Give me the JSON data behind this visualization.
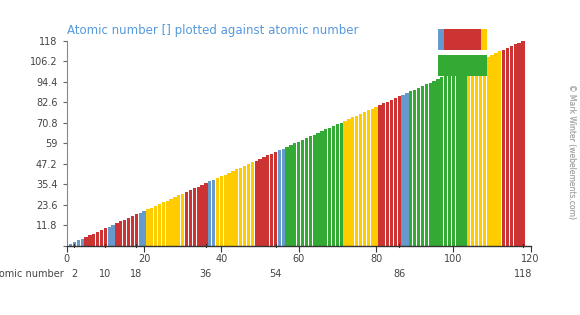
{
  "title": "Atomic number [] plotted against atomic number",
  "title_color": "#5599dd",
  "xlabel": "atomic number",
  "ylabel_ticks": [
    0,
    11.8,
    23.6,
    35.4,
    47.2,
    59,
    70.8,
    82.6,
    94.4,
    106.2,
    118
  ],
  "xlim": [
    0,
    120
  ],
  "ylim": [
    0,
    118
  ],
  "xtick_positions_top": [
    0,
    20,
    40,
    60,
    80,
    100,
    120
  ],
  "xtick_labels_top": [
    "0",
    "20",
    "40",
    "60",
    "80",
    "100",
    "120"
  ],
  "xtick_positions_bottom": [
    2,
    10,
    18,
    36,
    54,
    86,
    118
  ],
  "xtick_labels_bottom": [
    "2",
    "10",
    "18",
    "36",
    "54",
    "86",
    "118"
  ],
  "copyright": "© Mark Winter (webelements.com)",
  "bg_color": "#ffffff",
  "colors": {
    "s": "#6699cc",
    "p": "#cc3333",
    "d": "#ffcc00",
    "f": "#33aa33"
  }
}
